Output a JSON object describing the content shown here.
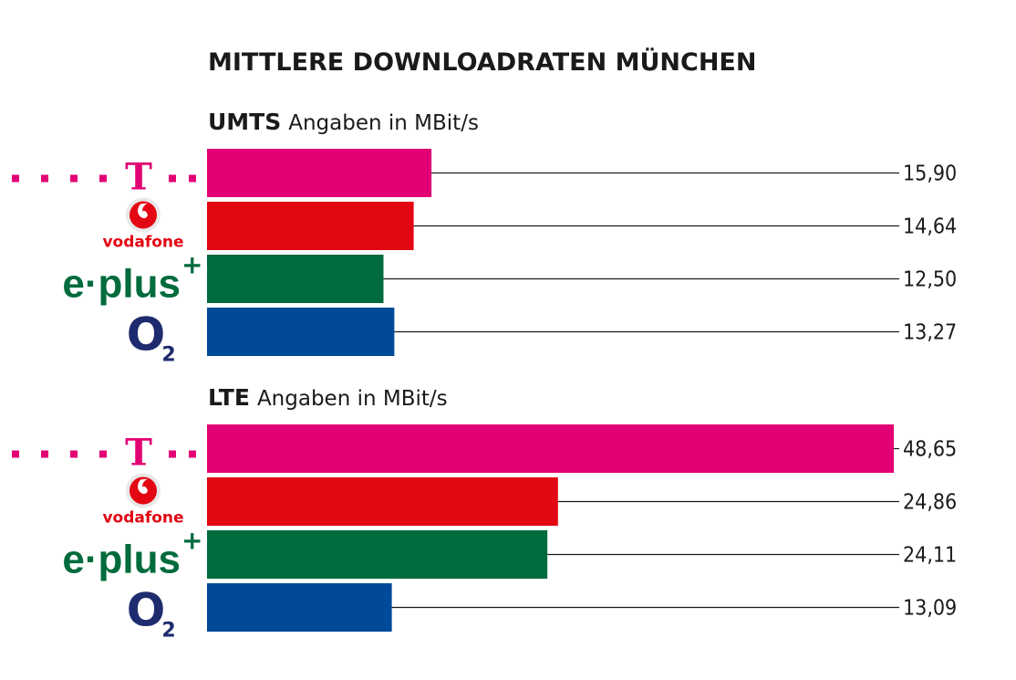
{
  "colors": {
    "telekom": "#e20074",
    "vodafone": "#e30613",
    "eplus": "#006b3c",
    "o2": "#004a99",
    "o2_logo": "#1e2b6e"
  },
  "logos": {
    "telekom": "T",
    "vodafone": "vodafone",
    "eplus": "e·plus",
    "eplus_plus": "+",
    "o2": "O",
    "o2_sub": "2"
  },
  "chart_data": {
    "type": "bar",
    "orientation": "horizontal",
    "title": "MITTLERE DOWNLOADRATEN MÜNCHEN",
    "unit_label": "Angaben in MBit/s",
    "categories": [
      "Telekom",
      "Vodafone",
      "E-Plus",
      "O2"
    ],
    "panels": [
      {
        "name": "UMTS",
        "values": [
          15.9,
          14.64,
          12.5,
          13.27
        ],
        "labels": [
          "15,90",
          "14,64",
          "12,50",
          "13,27"
        ]
      },
      {
        "name": "LTE",
        "values": [
          48.65,
          24.86,
          24.11,
          13.09
        ],
        "labels": [
          "48,65",
          "24,86",
          "24,11",
          "13,09"
        ]
      }
    ],
    "xlim": [
      0,
      48.65
    ]
  }
}
